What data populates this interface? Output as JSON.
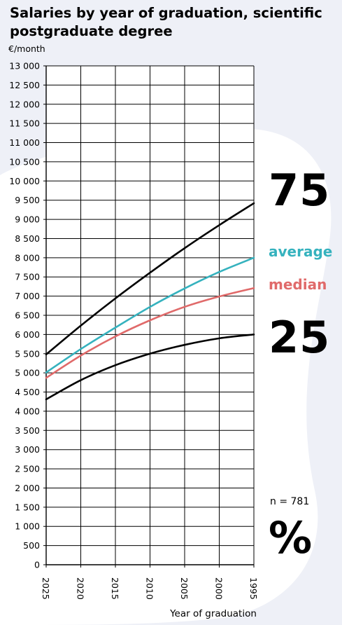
{
  "title": "Salaries by year of graduation, scientific postgraduate degree",
  "unit": "€/month",
  "xlabel": "Year of graduation",
  "n_label": "n = 781",
  "legend": {
    "p75": "75",
    "average": "average",
    "median": "median",
    "p25": "25",
    "percent": "%"
  },
  "colors": {
    "p75": "#000000",
    "average": "#35b2be",
    "median": "#e06a6a",
    "p25": "#000000",
    "background": "#eef0f7"
  },
  "chart_data": {
    "type": "line",
    "title": "Salaries by year of graduation, scientific postgraduate degree",
    "xlabel": "Year of graduation",
    "ylabel": "€/month",
    "x": [
      2025,
      2020,
      2015,
      2010,
      2005,
      2000,
      1995
    ],
    "xlim": [
      2025,
      1995
    ],
    "ylim": [
      0,
      13000
    ],
    "yticks": [
      0,
      500,
      1000,
      1500,
      2000,
      2500,
      3000,
      3500,
      4000,
      4500,
      5000,
      5500,
      6000,
      6500,
      7000,
      7500,
      8000,
      8500,
      9000,
      9500,
      10000,
      10500,
      11000,
      11500,
      12000,
      12500,
      13000
    ],
    "ytick_labels": [
      "0",
      "500",
      "1 000",
      "1 500",
      "2 000",
      "2 500",
      "3 000",
      "3 500",
      "4 000",
      "4 500",
      "5 000",
      "5 500",
      "6 000",
      "6 500",
      "7 000",
      "7 500",
      "8 000",
      "8 500",
      "9 000",
      "9 500",
      "10 000",
      "10 500",
      "11 000",
      "11 500",
      "12 000",
      "12 500",
      "13 000"
    ],
    "xtick_labels": [
      "2025",
      "2020",
      "2015",
      "2010",
      "2005",
      "2000",
      "1995"
    ],
    "grid": true,
    "series": [
      {
        "name": "75",
        "key": "p75",
        "values": [
          5480,
          6230,
          6940,
          7610,
          8250,
          8850,
          9420
        ]
      },
      {
        "name": "average",
        "key": "average",
        "values": [
          5010,
          5620,
          6180,
          6720,
          7200,
          7630,
          8000
        ]
      },
      {
        "name": "median",
        "key": "median",
        "values": [
          4870,
          5450,
          5950,
          6370,
          6720,
          6990,
          7210
        ]
      },
      {
        "name": "25",
        "key": "p25",
        "values": [
          4310,
          4810,
          5200,
          5500,
          5730,
          5900,
          6000
        ]
      }
    ]
  }
}
